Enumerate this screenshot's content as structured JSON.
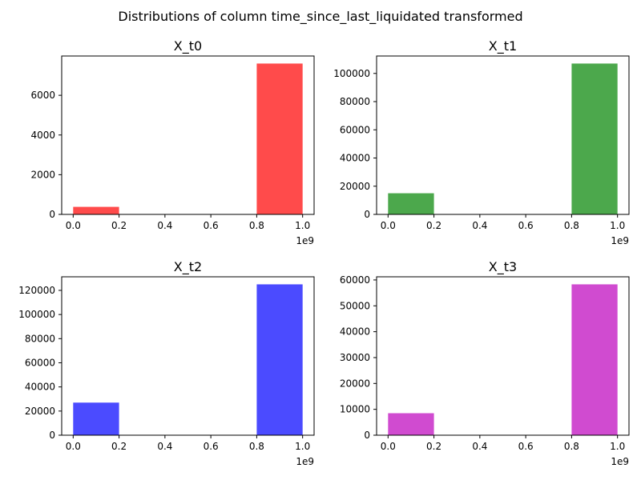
{
  "suptitle": "Distributions of column time_since_last_liquidated transformed",
  "chart_data": [
    {
      "type": "bar",
      "title": "X_t0",
      "bins": [
        [
          0.0,
          0.2
        ],
        [
          0.2,
          0.4
        ],
        [
          0.4,
          0.6
        ],
        [
          0.6,
          0.8
        ],
        [
          0.8,
          1.0
        ]
      ],
      "values": [
        380,
        0,
        0,
        0,
        7600
      ],
      "color": "#ff4b4b",
      "xlim": [
        -0.05,
        1.05
      ],
      "ylim": [
        0,
        7980
      ],
      "xticks": [
        0.0,
        0.2,
        0.4,
        0.6,
        0.8,
        1.0
      ],
      "xtick_labels": [
        "0.0",
        "0.2",
        "0.4",
        "0.6",
        "0.8",
        "1.0"
      ],
      "yticks": [
        0,
        2000,
        4000,
        6000
      ],
      "ytick_labels": [
        "0",
        "2000",
        "4000",
        "6000"
      ],
      "x_offset_label": "1e9"
    },
    {
      "type": "bar",
      "title": "X_t1",
      "bins": [
        [
          0.0,
          0.2
        ],
        [
          0.2,
          0.4
        ],
        [
          0.4,
          0.6
        ],
        [
          0.6,
          0.8
        ],
        [
          0.8,
          1.0
        ]
      ],
      "values": [
        15000,
        0,
        0,
        0,
        107000
      ],
      "color": "#4ca84c",
      "xlim": [
        -0.05,
        1.05
      ],
      "ylim": [
        0,
        112350
      ],
      "xticks": [
        0.0,
        0.2,
        0.4,
        0.6,
        0.8,
        1.0
      ],
      "xtick_labels": [
        "0.0",
        "0.2",
        "0.4",
        "0.6",
        "0.8",
        "1.0"
      ],
      "yticks": [
        0,
        20000,
        40000,
        60000,
        80000,
        100000
      ],
      "ytick_labels": [
        "0",
        "20000",
        "40000",
        "60000",
        "80000",
        "100000"
      ],
      "x_offset_label": "1e9"
    },
    {
      "type": "bar",
      "title": "X_t2",
      "bins": [
        [
          0.0,
          0.2
        ],
        [
          0.2,
          0.4
        ],
        [
          0.4,
          0.6
        ],
        [
          0.6,
          0.8
        ],
        [
          0.8,
          1.0
        ]
      ],
      "values": [
        27000,
        0,
        0,
        0,
        125000
      ],
      "color": "#4b4bff",
      "xlim": [
        -0.05,
        1.05
      ],
      "ylim": [
        0,
        131250
      ],
      "xticks": [
        0.0,
        0.2,
        0.4,
        0.6,
        0.8,
        1.0
      ],
      "xtick_labels": [
        "0.0",
        "0.2",
        "0.4",
        "0.6",
        "0.8",
        "1.0"
      ],
      "yticks": [
        0,
        20000,
        40000,
        60000,
        80000,
        100000,
        120000
      ],
      "ytick_labels": [
        "0",
        "20000",
        "40000",
        "60000",
        "80000",
        "100000",
        "120000"
      ],
      "x_offset_label": "1e9"
    },
    {
      "type": "bar",
      "title": "X_t3",
      "bins": [
        [
          0.0,
          0.2
        ],
        [
          0.2,
          0.4
        ],
        [
          0.4,
          0.6
        ],
        [
          0.6,
          0.8
        ],
        [
          0.8,
          1.0
        ]
      ],
      "values": [
        8500,
        0,
        0,
        0,
        58300
      ],
      "color": "#d04bd0",
      "xlim": [
        -0.05,
        1.05
      ],
      "ylim": [
        0,
        61215
      ],
      "xticks": [
        0.0,
        0.2,
        0.4,
        0.6,
        0.8,
        1.0
      ],
      "xtick_labels": [
        "0.0",
        "0.2",
        "0.4",
        "0.6",
        "0.8",
        "1.0"
      ],
      "yticks": [
        0,
        10000,
        20000,
        30000,
        40000,
        50000,
        60000
      ],
      "ytick_labels": [
        "0",
        "10000",
        "20000",
        "30000",
        "40000",
        "50000",
        "60000"
      ],
      "x_offset_label": "1e9"
    }
  ]
}
